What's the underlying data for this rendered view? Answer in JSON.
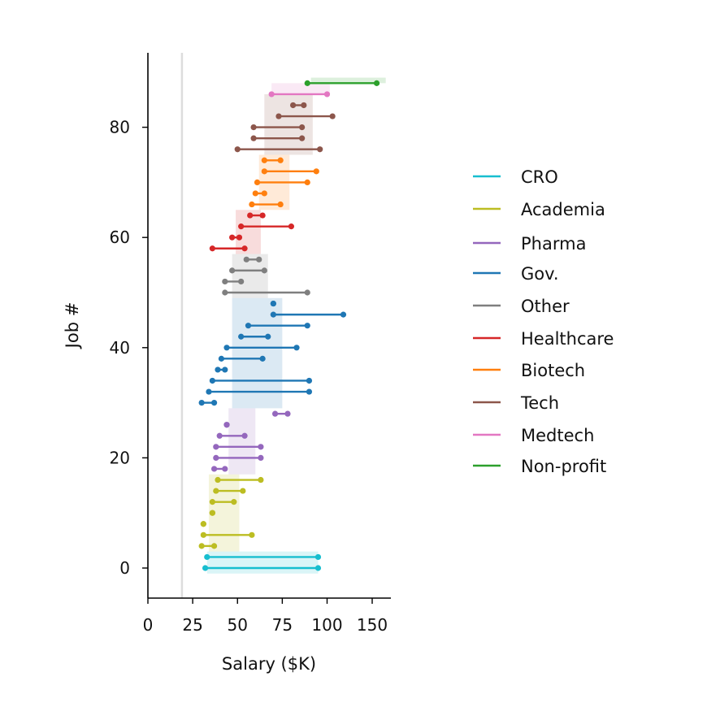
{
  "chart_data": {
    "type": "dumbbell",
    "xlabel": "Salary ($K)",
    "ylabel": "Job #",
    "x_scale": "nonlinear",
    "xticks": [
      0,
      25,
      50,
      75,
      100,
      150
    ],
    "xtick_labels": [
      "0",
      "25",
      "50",
      "75",
      "100",
      "150"
    ],
    "yticks": [
      0,
      20,
      40,
      60,
      80
    ],
    "yticks_labels": [
      "0",
      "20",
      "40",
      "60",
      "80"
    ],
    "ylim": [
      -5.5,
      93
    ],
    "reference_line_x": 19,
    "grid": false,
    "legend_position": "right",
    "categories": [
      {
        "name": "CRO",
        "color": "#17becf"
      },
      {
        "name": "Academia",
        "color": "#bcbd22"
      },
      {
        "name": "Pharma",
        "color": "#9467bd"
      },
      {
        "name": "Gov.",
        "color": "#1f77b4"
      },
      {
        "name": "Other",
        "color": "#7f7f7f"
      },
      {
        "name": "Healthcare",
        "color": "#d62728"
      },
      {
        "name": "Biotech",
        "color": "#ff7f0e"
      },
      {
        "name": "Tech",
        "color": "#8c564b"
      },
      {
        "name": "Medtech",
        "color": "#e377c2"
      },
      {
        "name": "Non-profit",
        "color": "#2ca02c"
      }
    ],
    "category_bands": [
      {
        "category": "CRO",
        "y": [
          -1,
          3
        ],
        "x": [
          33,
          95
        ]
      },
      {
        "category": "Academia",
        "y": [
          3,
          17
        ],
        "x": [
          34,
          51
        ]
      },
      {
        "category": "Pharma",
        "y": [
          17,
          29
        ],
        "x": [
          45,
          60
        ]
      },
      {
        "category": "Gov.",
        "y": [
          29,
          49
        ],
        "x": [
          47,
          75
        ]
      },
      {
        "category": "Other",
        "y": [
          49,
          57
        ],
        "x": [
          47,
          67
        ]
      },
      {
        "category": "Healthcare",
        "y": [
          57,
          65
        ],
        "x": [
          49,
          63
        ]
      },
      {
        "category": "Biotech",
        "y": [
          65,
          75
        ],
        "x": [
          62,
          79
        ]
      },
      {
        "category": "Tech",
        "y": [
          75,
          86
        ],
        "x": [
          65,
          92
        ]
      },
      {
        "category": "Medtech",
        "y": [
          86,
          88
        ],
        "x": [
          69,
          103
        ]
      },
      {
        "category": "Non-profit",
        "y": [
          88,
          89
        ],
        "x": [
          91,
          165
        ]
      }
    ],
    "jobs": [
      {
        "y": 0,
        "low": 32,
        "high": 95,
        "category": "CRO"
      },
      {
        "y": 2,
        "low": 33,
        "high": 95,
        "category": "CRO"
      },
      {
        "y": 4,
        "low": 30,
        "high": 37,
        "category": "Academia"
      },
      {
        "y": 6,
        "low": 31,
        "high": 58,
        "category": "Academia"
      },
      {
        "y": 8,
        "low": 31,
        "high": 31,
        "category": "Academia"
      },
      {
        "y": 10,
        "low": 36,
        "high": 36,
        "category": "Academia"
      },
      {
        "y": 12,
        "low": 36,
        "high": 48,
        "category": "Academia"
      },
      {
        "y": 14,
        "low": 38,
        "high": 53,
        "category": "Academia"
      },
      {
        "y": 16,
        "low": 39,
        "high": 63,
        "category": "Academia"
      },
      {
        "y": 18,
        "low": 37,
        "high": 43,
        "category": "Pharma"
      },
      {
        "y": 20,
        "low": 38,
        "high": 63,
        "category": "Pharma"
      },
      {
        "y": 22,
        "low": 38,
        "high": 63,
        "category": "Pharma"
      },
      {
        "y": 24,
        "low": 40,
        "high": 54,
        "category": "Pharma"
      },
      {
        "y": 26,
        "low": 44,
        "high": 44,
        "category": "Pharma"
      },
      {
        "y": 28,
        "low": 71,
        "high": 78,
        "category": "Pharma"
      },
      {
        "y": 30,
        "low": 30,
        "high": 37,
        "category": "Gov."
      },
      {
        "y": 32,
        "low": 34,
        "high": 90,
        "category": "Gov."
      },
      {
        "y": 34,
        "low": 36,
        "high": 90,
        "category": "Gov."
      },
      {
        "y": 36,
        "low": 39,
        "high": 43,
        "category": "Gov."
      },
      {
        "y": 38,
        "low": 41,
        "high": 64,
        "category": "Gov."
      },
      {
        "y": 40,
        "low": 44,
        "high": 83,
        "category": "Gov."
      },
      {
        "y": 42,
        "low": 52,
        "high": 67,
        "category": "Gov."
      },
      {
        "y": 44,
        "low": 56,
        "high": 89,
        "category": "Gov."
      },
      {
        "y": 46,
        "low": 70,
        "high": 118,
        "category": "Gov."
      },
      {
        "y": 48,
        "low": 70,
        "high": 70,
        "category": "Gov."
      },
      {
        "y": 50,
        "low": 43,
        "high": 89,
        "category": "Other"
      },
      {
        "y": 52,
        "low": 43,
        "high": 52,
        "category": "Other"
      },
      {
        "y": 54,
        "low": 47,
        "high": 65,
        "category": "Other"
      },
      {
        "y": 56,
        "low": 55,
        "high": 62,
        "category": "Other"
      },
      {
        "y": 58,
        "low": 36,
        "high": 54,
        "category": "Healthcare"
      },
      {
        "y": 60,
        "low": 47,
        "high": 51,
        "category": "Healthcare"
      },
      {
        "y": 62,
        "low": 52,
        "high": 80,
        "category": "Healthcare"
      },
      {
        "y": 64,
        "low": 57,
        "high": 64,
        "category": "Healthcare"
      },
      {
        "y": 66,
        "low": 58,
        "high": 74,
        "category": "Biotech"
      },
      {
        "y": 68,
        "low": 60,
        "high": 65,
        "category": "Biotech"
      },
      {
        "y": 70,
        "low": 61,
        "high": 89,
        "category": "Biotech"
      },
      {
        "y": 72,
        "low": 65,
        "high": 94,
        "category": "Biotech"
      },
      {
        "y": 74,
        "low": 65,
        "high": 74,
        "category": "Biotech"
      },
      {
        "y": 76,
        "low": 50,
        "high": 96,
        "category": "Tech"
      },
      {
        "y": 78,
        "low": 59,
        "high": 86,
        "category": "Tech"
      },
      {
        "y": 80,
        "low": 59,
        "high": 86,
        "category": "Tech"
      },
      {
        "y": 82,
        "low": 73,
        "high": 106,
        "category": "Tech"
      },
      {
        "y": 84,
        "low": 81,
        "high": 87,
        "category": "Tech"
      },
      {
        "y": 86,
        "low": 69,
        "high": 100,
        "category": "Medtech"
      },
      {
        "y": 88,
        "low": 89,
        "high": 155,
        "category": "Non-profit"
      }
    ]
  }
}
